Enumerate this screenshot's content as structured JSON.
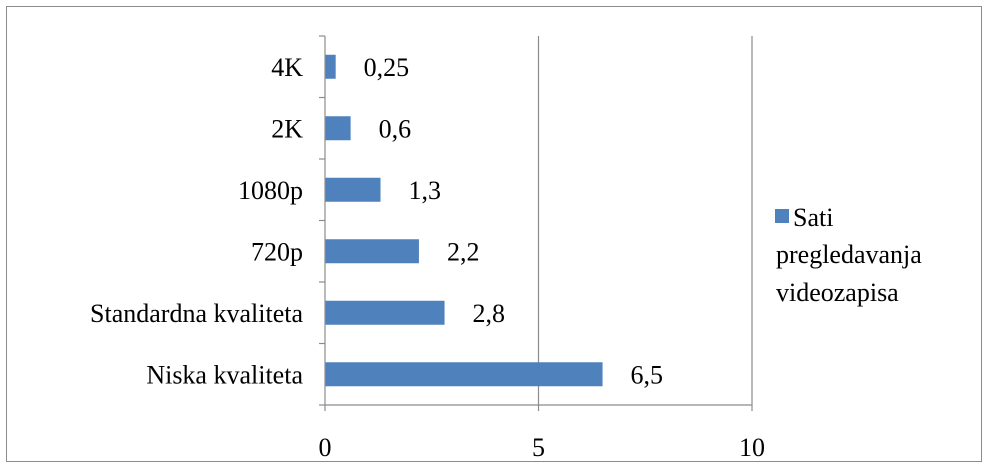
{
  "chart_data": {
    "type": "bar",
    "orientation": "horizontal",
    "categories": [
      "Niska kvaliteta",
      "Standardna kvaliteta",
      "720p",
      "1080p",
      "2K",
      "4K"
    ],
    "series": [
      {
        "name": "Sati pregledavanja videozapisa",
        "values": [
          6.5,
          2.8,
          2.2,
          1.3,
          0.6,
          0.25
        ],
        "labels": [
          "6,5",
          "2,8",
          "2,2",
          "1,3",
          "0,6",
          "0,25"
        ],
        "color": "#4f81bd"
      }
    ],
    "xlim": [
      0,
      10
    ],
    "xticks": [
      0,
      5,
      10
    ],
    "xtick_labels": [
      "0",
      "5",
      "10"
    ],
    "grid": "vertical",
    "legend": {
      "position": "right",
      "lines": [
        "Sati",
        "pregledavanja",
        "videozapisa"
      ]
    },
    "title": "",
    "xlabel": "",
    "ylabel": ""
  }
}
